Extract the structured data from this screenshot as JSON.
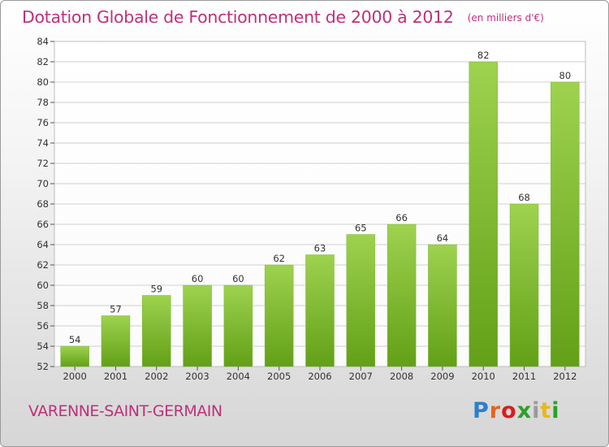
{
  "title": "Dotation Globale de Fonctionnement de 2000 à 2012",
  "unit_note": "(en milliers d'€)",
  "commune": "VARENNE-SAINT-GERMAIN",
  "logo": {
    "letters": [
      "P",
      "r",
      "o",
      "x",
      "i",
      "t",
      "i"
    ]
  },
  "colors": {
    "title": "#c0307a",
    "bar_top": "#9ed24f",
    "bar_bottom": "#62a017",
    "grid": "#cfcfcf"
  },
  "chart_data": {
    "type": "bar",
    "title": "Dotation Globale de Fonctionnement de 2000 à 2012",
    "categories": [
      "2000",
      "2001",
      "2002",
      "2003",
      "2004",
      "2005",
      "2006",
      "2007",
      "2008",
      "2009",
      "2010",
      "2011",
      "2012"
    ],
    "values": [
      54,
      57,
      59,
      60,
      60,
      62,
      63,
      65,
      66,
      64,
      82,
      68,
      80
    ],
    "ylim": [
      52,
      84
    ],
    "yticks": [
      52,
      54,
      56,
      58,
      60,
      62,
      64,
      66,
      68,
      70,
      72,
      74,
      76,
      78,
      80,
      82,
      84
    ],
    "xlabel": "",
    "ylabel": "",
    "grid": true,
    "data_labels": true
  }
}
